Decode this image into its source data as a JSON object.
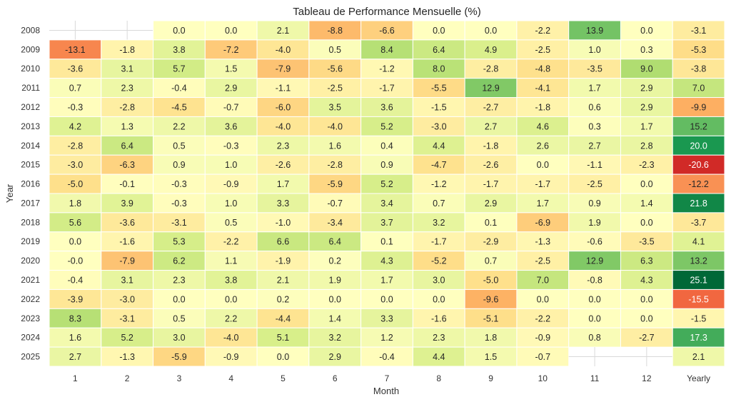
{
  "chart_data": {
    "type": "heatmap",
    "title": "Tableau de Performance Mensuelle (%)",
    "xlabel": "Month",
    "ylabel": "Year",
    "columns": [
      "1",
      "2",
      "3",
      "4",
      "5",
      "6",
      "7",
      "8",
      "9",
      "10",
      "11",
      "12",
      "Yearly"
    ],
    "rows": [
      "2008",
      "2009",
      "2010",
      "2011",
      "2012",
      "2013",
      "2014",
      "2015",
      "2016",
      "2017",
      "2018",
      "2019",
      "2020",
      "2021",
      "2022",
      "2023",
      "2024",
      "2025"
    ],
    "values": [
      [
        null,
        null,
        "0.0",
        "0.0",
        "2.1",
        "-8.8",
        "-6.6",
        "0.0",
        "0.0",
        "-2.2",
        "13.9",
        "0.0",
        "-3.1"
      ],
      [
        "-13.1",
        "-1.8",
        "3.8",
        "-7.2",
        "-4.0",
        "0.5",
        "8.4",
        "6.4",
        "4.9",
        "-2.5",
        "1.0",
        "0.3",
        "-5.3"
      ],
      [
        "-3.6",
        "3.1",
        "5.7",
        "1.5",
        "-7.9",
        "-5.6",
        "-1.2",
        "8.0",
        "-2.8",
        "-4.8",
        "-3.5",
        "9.0",
        "-3.8"
      ],
      [
        "0.7",
        "2.3",
        "-0.4",
        "2.9",
        "-1.1",
        "-2.5",
        "-1.7",
        "-5.5",
        "12.9",
        "-4.1",
        "1.7",
        "2.9",
        "7.0"
      ],
      [
        "-0.3",
        "-2.8",
        "-4.5",
        "-0.7",
        "-6.0",
        "3.5",
        "3.6",
        "-1.5",
        "-2.7",
        "-1.8",
        "0.6",
        "2.9",
        "-9.9"
      ],
      [
        "4.2",
        "1.3",
        "2.2",
        "3.6",
        "-4.0",
        "-4.0",
        "5.2",
        "-3.0",
        "2.7",
        "4.6",
        "0.3",
        "1.7",
        "15.2"
      ],
      [
        "-2.8",
        "6.4",
        "0.5",
        "-0.3",
        "2.3",
        "1.6",
        "0.4",
        "4.4",
        "-1.8",
        "2.6",
        "2.7",
        "2.8",
        "20.0"
      ],
      [
        "-3.0",
        "-6.3",
        "0.9",
        "1.0",
        "-2.6",
        "-2.8",
        "0.9",
        "-4.7",
        "-2.6",
        "0.0",
        "-1.1",
        "-2.3",
        "-20.6"
      ],
      [
        "-5.0",
        "-0.1",
        "-0.3",
        "-0.9",
        "1.7",
        "-5.9",
        "5.2",
        "-1.2",
        "-1.7",
        "-1.7",
        "-2.5",
        "0.0",
        "-12.2"
      ],
      [
        "1.8",
        "3.9",
        "-0.3",
        "1.0",
        "3.3",
        "-0.7",
        "3.4",
        "0.7",
        "2.9",
        "1.7",
        "0.9",
        "1.4",
        "21.8"
      ],
      [
        "5.6",
        "-3.6",
        "-3.1",
        "0.5",
        "-1.0",
        "-3.4",
        "3.7",
        "3.2",
        "0.1",
        "-6.9",
        "1.9",
        "0.0",
        "-3.7"
      ],
      [
        "0.0",
        "-1.6",
        "5.3",
        "-2.2",
        "6.6",
        "6.4",
        "0.1",
        "-1.7",
        "-2.9",
        "-1.3",
        "-0.6",
        "-3.5",
        "4.1"
      ],
      [
        "-0.0",
        "-7.9",
        "6.2",
        "1.1",
        "-1.9",
        "0.2",
        "4.3",
        "-5.2",
        "0.7",
        "-2.5",
        "12.9",
        "6.3",
        "13.2"
      ],
      [
        "-0.4",
        "3.1",
        "2.3",
        "3.8",
        "2.1",
        "1.9",
        "1.7",
        "3.0",
        "-5.0",
        "7.0",
        "-0.8",
        "4.3",
        "25.1"
      ],
      [
        "-3.9",
        "-3.0",
        "0.0",
        "0.0",
        "0.2",
        "0.0",
        "0.0",
        "0.0",
        "-9.6",
        "0.0",
        "0.0",
        "0.0",
        "-15.5"
      ],
      [
        "8.3",
        "-3.1",
        "0.5",
        "2.2",
        "-4.4",
        "1.4",
        "3.3",
        "-1.6",
        "-5.1",
        "-2.2",
        "0.0",
        "0.0",
        "-1.5"
      ],
      [
        "1.6",
        "5.2",
        "3.0",
        "-4.0",
        "5.1",
        "3.2",
        "1.2",
        "2.3",
        "1.8",
        "-0.9",
        "0.8",
        "-2.7",
        "17.3"
      ],
      [
        "2.7",
        "-1.3",
        "-5.9",
        "-0.9",
        "0.0",
        "2.9",
        "-0.4",
        "4.4",
        "1.5",
        "-0.7",
        null,
        null,
        "2.1"
      ]
    ],
    "colormap": "RdYlGn",
    "color_range": [
      -25,
      25
    ],
    "colormap_stops": [
      "#a50026",
      "#d73027",
      "#f46d43",
      "#fdae61",
      "#fee08b",
      "#ffffbf",
      "#d9ef8b",
      "#a6d96a",
      "#66bd63",
      "#1a9850",
      "#006837"
    ],
    "legend": "none",
    "grid": true
  }
}
